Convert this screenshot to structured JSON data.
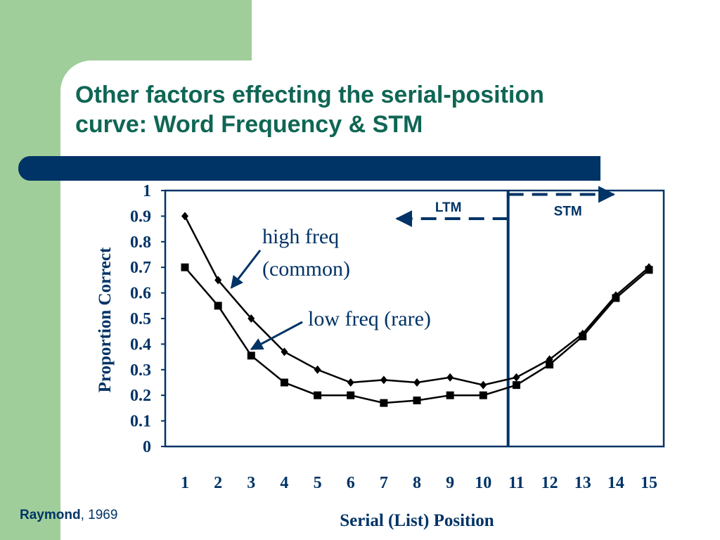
{
  "slide": {
    "title_lines": [
      "Other factors effecting the serial-position",
      "curve: Word Frequency & STM"
    ],
    "citation": {
      "author": "Raymond",
      "year": ", 1969"
    }
  },
  "colors": {
    "title": "#0f6654",
    "accent_bar": "#003366",
    "left_band": "#9fce9a",
    "chart_text": "#003366",
    "series": "#000000"
  },
  "chart_data": {
    "type": "line",
    "xlabel": "Serial (List) Position",
    "ylabel": "Proportion Correct",
    "ylim": [
      0,
      1
    ],
    "xlim": [
      1,
      15
    ],
    "x": [
      1,
      2,
      3,
      4,
      5,
      6,
      7,
      8,
      9,
      10,
      11,
      12,
      13,
      14,
      15
    ],
    "x_tick_labels": [
      "1",
      "2",
      "3",
      "4",
      "5",
      "6",
      "7",
      "8",
      "9",
      "10",
      "11",
      "12",
      "13",
      "14",
      "15"
    ],
    "y_ticks": [
      0,
      0.1,
      0.2,
      0.3,
      0.4,
      0.5,
      0.6,
      0.7,
      0.8,
      0.9,
      1
    ],
    "y_tick_labels": [
      "0",
      "0.1",
      "0.2",
      "0.3",
      "0.4",
      "0.5",
      "0.6",
      "0.7",
      "0.8",
      "0.9",
      "1"
    ],
    "grid": false,
    "legend": "none",
    "series": [
      {
        "marker": "diamond",
        "values": [
          0.9,
          0.65,
          0.5,
          0.37,
          0.3,
          0.25,
          0.26,
          0.25,
          0.27,
          0.24,
          0.27,
          0.34,
          0.44,
          0.59,
          0.7
        ]
      },
      {
        "marker": "square",
        "values": [
          0.7,
          0.55,
          0.355,
          0.25,
          0.2,
          0.2,
          0.17,
          0.18,
          0.2,
          0.2,
          0.24,
          0.32,
          0.43,
          0.58,
          0.69
        ]
      }
    ],
    "annotations": [
      {
        "lines": [
          "high freq",
          "(common)"
        ],
        "points_to": {
          "x": 2.4,
          "y": 0.62
        }
      },
      {
        "lines": [
          "low freq (rare)"
        ],
        "points_to": {
          "x": 3.0,
          "y": 0.38
        }
      }
    ],
    "divider_x": 10.75,
    "regions": [
      {
        "label": "LTM",
        "arrow": "left",
        "arrow_y": 0.89
      },
      {
        "label": "STM",
        "arrow": "right",
        "arrow_y": 0.985
      }
    ]
  }
}
